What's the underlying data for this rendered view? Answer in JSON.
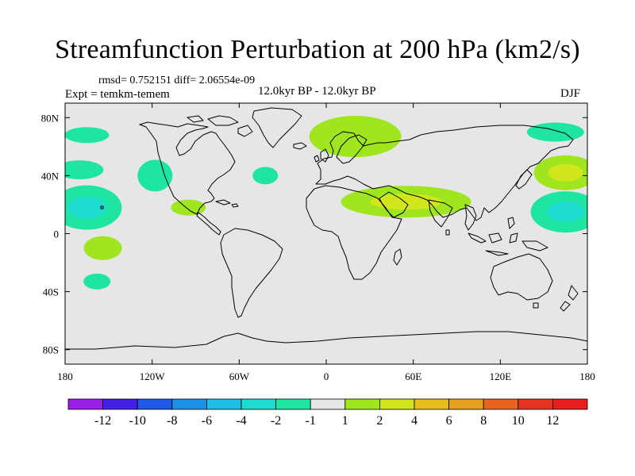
{
  "header": {
    "title": "Streamfunction Perturbation at 200 hPa (km2/s)",
    "stats": "rmsd= 0.752151  diff= 2.06554e-09",
    "experiment": "Expt = temkm-temem",
    "period": "12.0kyr BP - 12.0kyr BP",
    "season": "DJF"
  },
  "chart_data": {
    "type": "heatmap",
    "projection": "cylindrical-equidistant",
    "title": "Streamfunction Perturbation at 200 hPa (km2/s)",
    "units": "km2/s",
    "lon_range": [
      -180,
      180
    ],
    "lat_range": [
      -90,
      90
    ],
    "x_ticks": [
      {
        "value": -180,
        "label": "180"
      },
      {
        "value": -120,
        "label": "120W"
      },
      {
        "value": -60,
        "label": "60W"
      },
      {
        "value": 0,
        "label": "0"
      },
      {
        "value": 60,
        "label": "60E"
      },
      {
        "value": 120,
        "label": "120E"
      },
      {
        "value": 180,
        "label": "180"
      }
    ],
    "y_ticks": [
      {
        "value": 80,
        "label": "80N"
      },
      {
        "value": 40,
        "label": "40N"
      },
      {
        "value": 0,
        "label": "0"
      },
      {
        "value": -40,
        "label": "40S"
      },
      {
        "value": -80,
        "label": "80S"
      }
    ],
    "colorbar": {
      "labels": [
        "-12",
        "-10",
        "-8",
        "-6",
        "-4",
        "-2",
        "-1",
        "1",
        "2",
        "4",
        "6",
        "8",
        "10",
        "12"
      ],
      "colors": [
        "#9a1ee6",
        "#4420e6",
        "#1e5ae6",
        "#1e90e6",
        "#1ebee6",
        "#1edcd0",
        "#1ee6a0",
        "#e6e6e6",
        "#a0e61e",
        "#d2e61e",
        "#e6be1e",
        "#e6a01e",
        "#e6641e",
        "#e6321e",
        "#e61e1e"
      ]
    },
    "background_color": "#e6e6e6",
    "anomalies": [
      {
        "name": "north-atlantic-europe-positive",
        "lon": 20,
        "lat": 67,
        "value": 1.5
      },
      {
        "name": "north-africa-arabia-positive",
        "lon": 55,
        "lat": 22,
        "value": 2.5
      },
      {
        "name": "west-pacific-high-positive",
        "lon": 165,
        "lat": 42,
        "value": 2.5
      },
      {
        "name": "east-asia-arctic-negative",
        "lon": 158,
        "lat": 70,
        "value": -1.5
      },
      {
        "name": "west-pacific-subtropical-negative",
        "lon": 165,
        "lat": 15,
        "value": -2.5
      },
      {
        "name": "east-pacific-subtropical-negative",
        "lon": -165,
        "lat": 18,
        "value": -2.5
      },
      {
        "name": "north-pacific-arctic-negative",
        "lon": -165,
        "lat": 68,
        "value": -1.5
      },
      {
        "name": "dateline-midlatitude-negative",
        "lon": -170,
        "lat": 44,
        "value": -1.5
      },
      {
        "name": "gulf-of-alaska-negative",
        "lon": -118,
        "lat": 40,
        "value": -1.5
      },
      {
        "name": "mid-atlantic-negative",
        "lon": -42,
        "lat": 40,
        "value": -1.5
      },
      {
        "name": "mexico-caribbean-positive",
        "lon": -95,
        "lat": 18,
        "value": 1.5
      },
      {
        "name": "south-pacific-positive",
        "lon": -154,
        "lat": -10,
        "value": 1.5
      },
      {
        "name": "south-pacific-negative",
        "lon": -158,
        "lat": -33,
        "value": -1.5
      }
    ]
  }
}
